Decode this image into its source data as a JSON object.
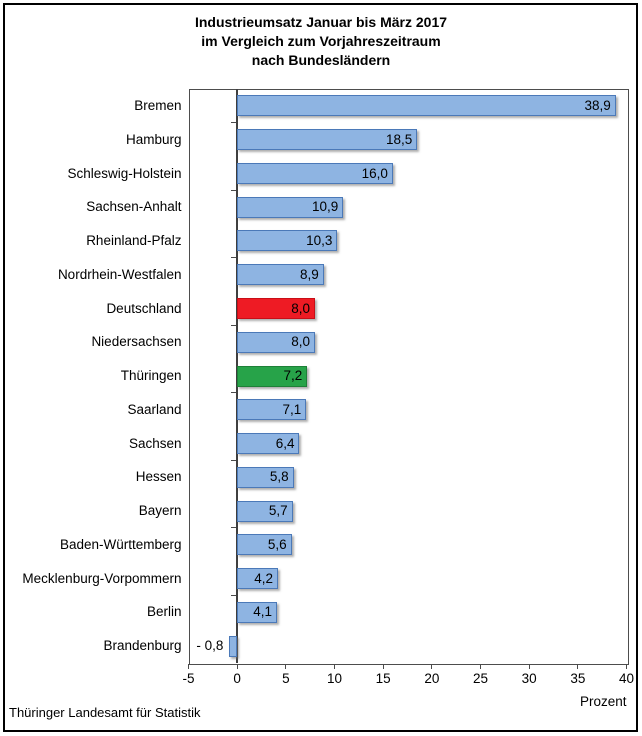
{
  "window": {
    "title_lines": [
      "Industrieumsatz Januar bis März 2017",
      "im Vergleich zum Vorjahreszeitraum",
      "nach Bundesländern"
    ]
  },
  "footer": {
    "source": "Thüringer Landesamt für Statistik"
  },
  "axis": {
    "unit_label": "Prozent",
    "ticks": [
      -5,
      0,
      5,
      10,
      15,
      20,
      25,
      30,
      35,
      40
    ],
    "tick_labels": [
      "-5",
      "0",
      "5",
      "10",
      "15",
      "20",
      "25",
      "30",
      "35",
      "40"
    ]
  },
  "colors": {
    "blue": {
      "fill": "#8EB4E2",
      "border": "#4B79B8"
    },
    "red": {
      "fill": "#EE1B24",
      "border": "#C90E17"
    },
    "green": {
      "fill": "#27A349",
      "border": "#1E8038"
    },
    "axis_line": "#3F3F3F",
    "plot_border": "#4D4D4D"
  },
  "chart_data": {
    "type": "bar",
    "orientation": "horizontal",
    "title": "Industrieumsatz Januar bis März 2017 im Vergleich zum Vorjahreszeitraum nach Bundesländern",
    "xlabel": "Prozent",
    "xlim": [
      -5,
      40
    ],
    "grid": false,
    "legend": false,
    "categories": [
      "Bremen",
      "Hamburg",
      "Schleswig-Holstein",
      "Sachsen-Anhalt",
      "Rheinland-Pfalz",
      "Nordrhein-Westfalen",
      "Deutschland",
      "Niedersachsen",
      "Thüringen",
      "Saarland",
      "Sachsen",
      "Hessen",
      "Bayern",
      "Baden-Württemberg",
      "Mecklenburg-Vorpommern",
      "Berlin",
      "Brandenburg"
    ],
    "values": [
      38.9,
      18.5,
      16.0,
      10.9,
      10.3,
      8.9,
      8.0,
      8.0,
      7.2,
      7.1,
      6.4,
      5.8,
      5.7,
      5.6,
      4.2,
      4.1,
      -0.8
    ],
    "value_labels": [
      "38,9",
      "18,5",
      "16,0",
      "10,9",
      "10,3",
      "8,9",
      "8,0",
      "8,0",
      "7,2",
      "7,1",
      "6,4",
      "5,8",
      "5,7",
      "5,6",
      "4,2",
      "4,1",
      "- 0,8"
    ],
    "bar_colors": [
      "blue",
      "blue",
      "blue",
      "blue",
      "blue",
      "blue",
      "red",
      "blue",
      "green",
      "blue",
      "blue",
      "blue",
      "blue",
      "blue",
      "blue",
      "blue",
      "blue"
    ]
  }
}
